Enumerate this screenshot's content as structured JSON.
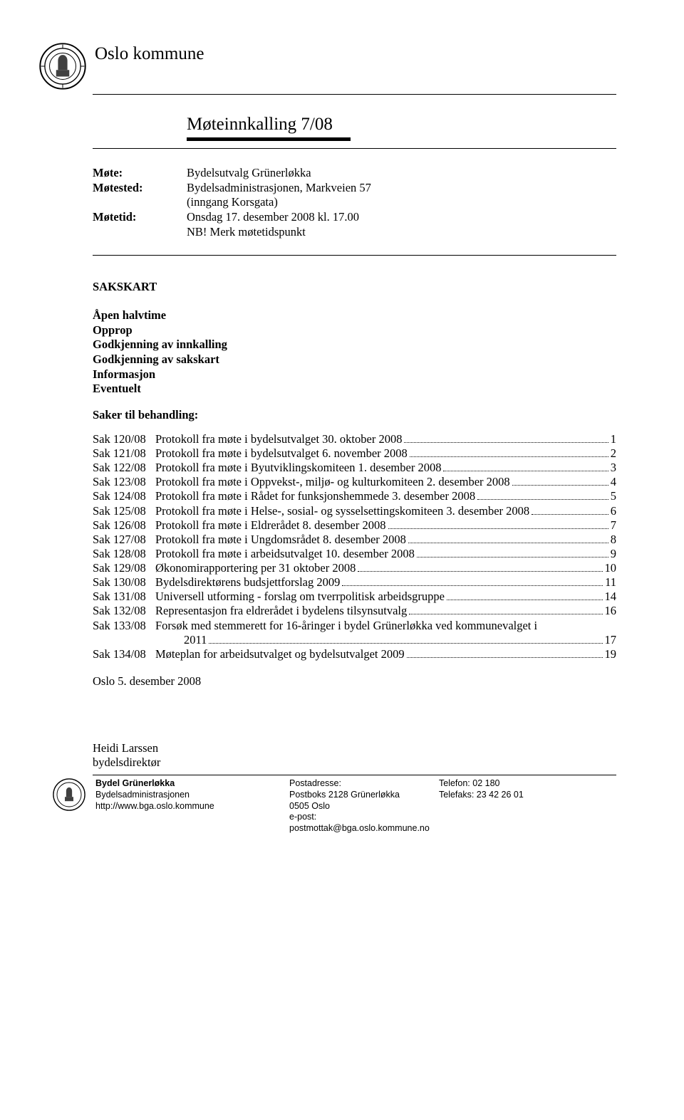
{
  "org": "Oslo kommune",
  "doc_title": "Møteinnkalling 7/08",
  "meta": [
    {
      "label": "Møte:",
      "value_lines": [
        "Bydelsutvalg Grünerløkka"
      ]
    },
    {
      "label": "Møtested:",
      "value_lines": [
        "Bydelsadministrasjonen, Markveien 57",
        "(inngang Korsgata)"
      ]
    },
    {
      "label": "Møtetid:",
      "value_lines": [
        "Onsdag 17. desember 2008 kl. 17.00",
        "NB! Merk møtetidspunkt"
      ]
    }
  ],
  "sakskart_heading": "SAKSKART",
  "pre_agenda_bold": [
    "Åpen halvtime",
    "Opprop",
    "Godkjenning av innkalling",
    "Godkjenning av sakskart",
    "Informasjon",
    "Eventuelt"
  ],
  "saker_heading": "Saker til behandling:",
  "saker": [
    {
      "id": "Sak 120/08",
      "title": "Protokoll fra møte i bydelsutvalget 30. oktober 2008",
      "page": "1"
    },
    {
      "id": "Sak 121/08",
      "title": "Protokoll fra møte i bydelsutvalget 6. november 2008",
      "page": "2"
    },
    {
      "id": "Sak 122/08",
      "title": "Protokoll fra møte i Byutviklingskomiteen 1. desember 2008",
      "page": "3"
    },
    {
      "id": "Sak 123/08",
      "title": "Protokoll fra møte i Oppvekst-, miljø- og kulturkomiteen 2. desember 2008",
      "page": "4"
    },
    {
      "id": "Sak 124/08",
      "title": "Protokoll fra møte i Rådet for funksjonshemmede 3. desember 2008",
      "page": "5"
    },
    {
      "id": "Sak 125/08",
      "title": "Protokoll fra møte i Helse-, sosial- og sysselsettingskomiteen 3. desember 2008",
      "page": "6"
    },
    {
      "id": "Sak 126/08",
      "title": "Protokoll fra møte i Eldrerådet 8. desember 2008",
      "page": "7"
    },
    {
      "id": "Sak 127/08",
      "title": "Protokoll fra møte i Ungdomsrådet 8. desember 2008",
      "page": "8"
    },
    {
      "id": "Sak 128/08",
      "title": "Protokoll fra møte i arbeidsutvalget 10. desember 2008",
      "page": "9"
    },
    {
      "id": "Sak 129/08",
      "title": "Økonomirapportering per 31 oktober 2008",
      "page": "10"
    },
    {
      "id": "Sak 130/08",
      "title": "Bydelsdirektørens budsjettforslag 2009",
      "page": "11"
    },
    {
      "id": "Sak 131/08",
      "title": "Universell utforming - forslag om tverrpolitisk arbeidsgruppe",
      "page": "14"
    },
    {
      "id": "Sak 132/08",
      "title": "Representasjon fra eldrerådet i bydelens tilsynsutvalg",
      "page": "16"
    },
    {
      "id": "Sak 133/08",
      "title": "Forsøk med stemmerett for 16-åringer i bydel Grünerløkka ved kommunevalget i",
      "page": ""
    },
    {
      "id": "",
      "title": "2011",
      "page": "17",
      "continuation": true
    },
    {
      "id": "Sak 134/08",
      "title": "Møteplan for arbeidsutvalget og bydelsutvalget 2009",
      "page": "19"
    }
  ],
  "date_line": "Oslo 5. desember 2008",
  "signatory": {
    "name": "Heidi Larssen",
    "role": "bydelsdirektør"
  },
  "footer": {
    "col1": {
      "l1_bold": "Bydel Grünerløkka",
      "l2": "Bydelsadministrasjonen",
      "l3": "http://www.bga.oslo.kommune"
    },
    "col2": {
      "l1": "Postadresse:",
      "l2": "Postboks 2128 Grünerløkka",
      "l3": "0505 Oslo",
      "l4": "e-post: postmottak@bga.oslo.kommune.no"
    },
    "col3": {
      "l1": "Telefon:  02 180",
      "l2": "Telefaks: 23 42 26 01"
    }
  }
}
